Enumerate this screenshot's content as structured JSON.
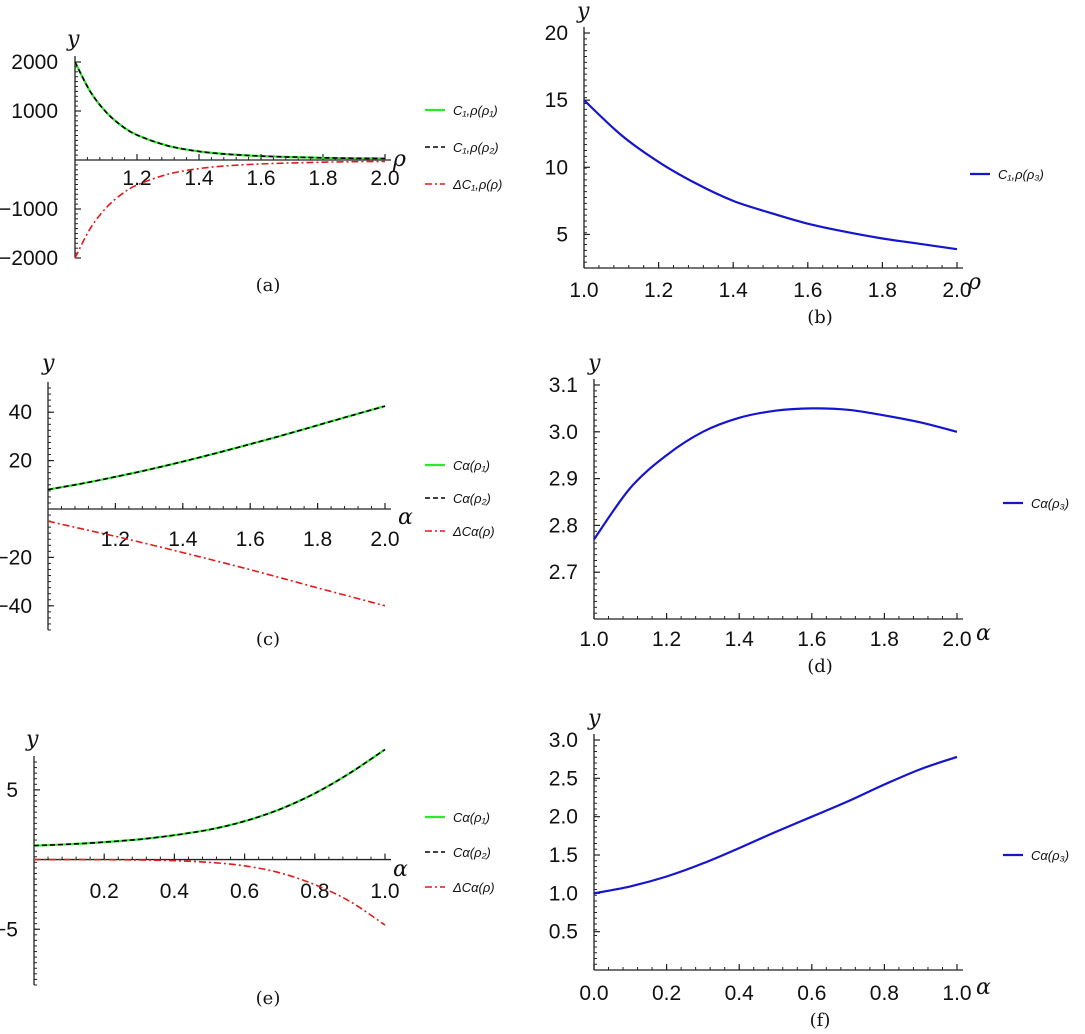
{
  "chart_data": [
    {
      "id": "a",
      "type": "line",
      "caption": "(a)",
      "xlabel": "ρ",
      "ylabel": "y",
      "xlim": [
        1.0,
        2.0
      ],
      "ylim": [
        -2000,
        2000
      ],
      "xticks": [
        1.2,
        1.4,
        1.6,
        1.8,
        2.0
      ],
      "xtick_labels": [
        "1.2",
        "1.4",
        "1.6",
        "1.8",
        "2.0"
      ],
      "yticks": [
        2000,
        1000,
        -1000,
        -2000
      ],
      "ytick_labels": [
        "2000",
        "1000",
        "−1000",
        "−2000"
      ],
      "legend_position": "right",
      "series": [
        {
          "name": "C1,ρ(ρ1)",
          "legend_label": "C₁,ρ(ρ₁)",
          "color": "#2ee82e",
          "dash": "solid",
          "x": [
            1.0,
            1.05,
            1.1,
            1.15,
            1.2,
            1.3,
            1.4,
            1.5,
            1.6,
            1.7,
            1.8,
            1.9,
            2.0
          ],
          "y": [
            2000,
            1390,
            980,
            700,
            510,
            290,
            175,
            115,
            80,
            60,
            45,
            35,
            30
          ]
        },
        {
          "name": "C1,ρ(ρ2)",
          "legend_label": "C₁,ρ(ρ₂)",
          "color": "#000000",
          "dash": "dashed",
          "x": [
            1.0,
            1.05,
            1.1,
            1.15,
            1.2,
            1.3,
            1.4,
            1.5,
            1.6,
            1.7,
            1.8,
            1.9,
            2.0
          ],
          "y": [
            2000,
            1390,
            980,
            700,
            510,
            290,
            175,
            115,
            80,
            60,
            45,
            35,
            30
          ]
        },
        {
          "name": "ΔC1,ρ(ρ)",
          "legend_label": "ΔC₁,ρ(ρ)",
          "color": "#e01b1b",
          "dash": "dashdot",
          "x": [
            1.0,
            1.05,
            1.1,
            1.15,
            1.2,
            1.3,
            1.4,
            1.5,
            1.6,
            1.7,
            1.8,
            1.9,
            2.0
          ],
          "y": [
            -2000,
            -1390,
            -980,
            -700,
            -510,
            -290,
            -175,
            -115,
            -80,
            -60,
            -45,
            -35,
            -30
          ]
        }
      ]
    },
    {
      "id": "b",
      "type": "line",
      "caption": "(b)",
      "xlabel": "ρ",
      "ylabel": "y",
      "xlim": [
        1.0,
        2.0
      ],
      "ylim": [
        2.5,
        20
      ],
      "xticks": [
        1.0,
        1.2,
        1.4,
        1.6,
        1.8,
        2.0
      ],
      "xtick_labels": [
        "1.0",
        "1.2",
        "1.4",
        "1.6",
        "1.8",
        "2.0"
      ],
      "yticks": [
        5,
        10,
        15,
        20
      ],
      "ytick_labels": [
        "5",
        "10",
        "15",
        "20"
      ],
      "legend_position": "right",
      "series": [
        {
          "name": "C1,ρ(ρ3)",
          "legend_label": "C₁,ρ(ρ₃)",
          "color": "#1515cf",
          "dash": "solid",
          "x": [
            1.0,
            1.1,
            1.2,
            1.3,
            1.4,
            1.5,
            1.6,
            1.7,
            1.8,
            1.9,
            2.0
          ],
          "y": [
            15.0,
            12.4,
            10.4,
            8.8,
            7.5,
            6.6,
            5.8,
            5.2,
            4.7,
            4.3,
            3.9
          ]
        }
      ]
    },
    {
      "id": "c",
      "type": "line",
      "caption": "(c)",
      "xlabel": "α",
      "ylabel": "y",
      "xlim": [
        1.0,
        2.0
      ],
      "ylim": [
        -50,
        50
      ],
      "xticks": [
        1.2,
        1.4,
        1.6,
        1.8,
        2.0
      ],
      "xtick_labels": [
        "1.2",
        "1.4",
        "1.6",
        "1.8",
        "2.0"
      ],
      "yticks": [
        40,
        20,
        -20,
        -40
      ],
      "ytick_labels": [
        "40",
        "20",
        "−20",
        "−40"
      ],
      "legend_position": "right",
      "series": [
        {
          "name": "Cα(ρ1)",
          "legend_label": "Cα(ρ₁)",
          "color": "#2ee82e",
          "dash": "solid",
          "x": [
            1.0,
            1.1,
            1.2,
            1.3,
            1.4,
            1.5,
            1.6,
            1.7,
            1.8,
            1.9,
            2.0
          ],
          "y": [
            8,
            10.5,
            13.3,
            16.3,
            19.6,
            23.1,
            26.8,
            30.6,
            34.6,
            38.6,
            42.5
          ]
        },
        {
          "name": "Cα(ρ2)",
          "legend_label": "Cα(ρ₂)",
          "color": "#000000",
          "dash": "dashed",
          "x": [
            1.0,
            1.1,
            1.2,
            1.3,
            1.4,
            1.5,
            1.6,
            1.7,
            1.8,
            1.9,
            2.0
          ],
          "y": [
            8,
            10.5,
            13.3,
            16.3,
            19.6,
            23.1,
            26.8,
            30.6,
            34.6,
            38.6,
            42.5
          ]
        },
        {
          "name": "ΔCα(ρ)",
          "legend_label": "ΔCα(ρ)",
          "color": "#e01b1b",
          "dash": "dashdot",
          "x": [
            1.0,
            1.1,
            1.2,
            1.3,
            1.4,
            1.5,
            1.6,
            1.7,
            1.8,
            1.9,
            2.0
          ],
          "y": [
            -5,
            -8.2,
            -11.3,
            -14.6,
            -18.0,
            -21.5,
            -25.1,
            -28.8,
            -32.6,
            -36.3,
            -40
          ]
        }
      ]
    },
    {
      "id": "d",
      "type": "line",
      "caption": "(d)",
      "xlabel": "α",
      "ylabel": "y",
      "xlim": [
        1.0,
        2.0
      ],
      "ylim": [
        2.6,
        3.1
      ],
      "xticks": [
        1.0,
        1.2,
        1.4,
        1.6,
        1.8,
        2.0
      ],
      "xtick_labels": [
        "1.0",
        "1.2",
        "1.4",
        "1.6",
        "1.8",
        "2.0"
      ],
      "yticks": [
        2.7,
        2.8,
        2.9,
        3.0,
        3.1
      ],
      "ytick_labels": [
        "2.7",
        "2.8",
        "2.9",
        "3.0",
        "3.1"
      ],
      "legend_position": "right",
      "series": [
        {
          "name": "Cα(ρ3)",
          "legend_label": "Cα(ρ₃)",
          "color": "#1515cf",
          "dash": "solid",
          "x": [
            1.0,
            1.1,
            1.2,
            1.3,
            1.4,
            1.5,
            1.6,
            1.7,
            1.8,
            1.9,
            2.0
          ],
          "y": [
            2.77,
            2.88,
            2.95,
            3.0,
            3.03,
            3.045,
            3.05,
            3.047,
            3.035,
            3.02,
            3.0
          ]
        }
      ]
    },
    {
      "id": "e",
      "type": "line",
      "caption": "(e)",
      "xlabel": "α",
      "ylabel": "y",
      "xlim": [
        0.0,
        1.0
      ],
      "ylim": [
        -9,
        7
      ],
      "xticks": [
        0.2,
        0.4,
        0.6,
        0.8,
        1.0
      ],
      "xtick_labels": [
        "0.2",
        "0.4",
        "0.6",
        "0.8",
        "1.0"
      ],
      "yticks": [
        5,
        -5
      ],
      "ytick_labels": [
        "5",
        "−5"
      ],
      "legend_position": "right",
      "series": [
        {
          "name": "Cα(ρ1)",
          "legend_label": "Cα(ρ₁)",
          "color": "#2ee82e",
          "dash": "solid",
          "x": [
            0.0,
            0.1,
            0.2,
            0.3,
            0.4,
            0.5,
            0.6,
            0.7,
            0.8,
            0.9,
            1.0
          ],
          "y": [
            1.0,
            1.1,
            1.25,
            1.45,
            1.75,
            2.15,
            2.75,
            3.6,
            4.75,
            6.2,
            7.9
          ]
        },
        {
          "name": "Cα(ρ2)",
          "legend_label": "Cα(ρ₂)",
          "color": "#000000",
          "dash": "dashed",
          "x": [
            0.0,
            0.1,
            0.2,
            0.3,
            0.4,
            0.5,
            0.6,
            0.7,
            0.8,
            0.9,
            1.0
          ],
          "y": [
            1.0,
            1.1,
            1.25,
            1.45,
            1.75,
            2.15,
            2.75,
            3.6,
            4.75,
            6.2,
            7.9
          ]
        },
        {
          "name": "ΔCα(ρ)",
          "legend_label": "ΔCα(ρ)",
          "color": "#e01b1b",
          "dash": "dashdot",
          "x": [
            0.0,
            0.1,
            0.2,
            0.3,
            0.4,
            0.5,
            0.6,
            0.7,
            0.8,
            0.9,
            1.0
          ],
          "y": [
            0.0,
            0.0,
            -0.01,
            -0.03,
            -0.08,
            -0.2,
            -0.45,
            -0.95,
            -1.8,
            -3.0,
            -4.7
          ]
        }
      ]
    },
    {
      "id": "f",
      "type": "line",
      "caption": "(f)",
      "xlabel": "α",
      "ylabel": "y",
      "xlim": [
        0.0,
        1.0
      ],
      "ylim": [
        0.0,
        3.0
      ],
      "xticks": [
        0.0,
        0.2,
        0.4,
        0.6,
        0.8,
        1.0
      ],
      "xtick_labels": [
        "0.0",
        "0.2",
        "0.4",
        "0.6",
        "0.8",
        "1.0"
      ],
      "yticks": [
        0.5,
        1.0,
        1.5,
        2.0,
        2.5,
        3.0
      ],
      "ytick_labels": [
        "0.5",
        "1.0",
        "1.5",
        "2.0",
        "2.5",
        "3.0"
      ],
      "legend_position": "right",
      "series": [
        {
          "name": "Cα(ρ3)",
          "legend_label": "Cα(ρ₃)",
          "color": "#1515cf",
          "dash": "solid",
          "x": [
            0.0,
            0.1,
            0.2,
            0.3,
            0.4,
            0.5,
            0.6,
            0.7,
            0.8,
            0.9,
            1.0
          ],
          "y": [
            1.0,
            1.09,
            1.22,
            1.39,
            1.59,
            1.8,
            2.0,
            2.2,
            2.42,
            2.62,
            2.78
          ]
        }
      ]
    }
  ]
}
